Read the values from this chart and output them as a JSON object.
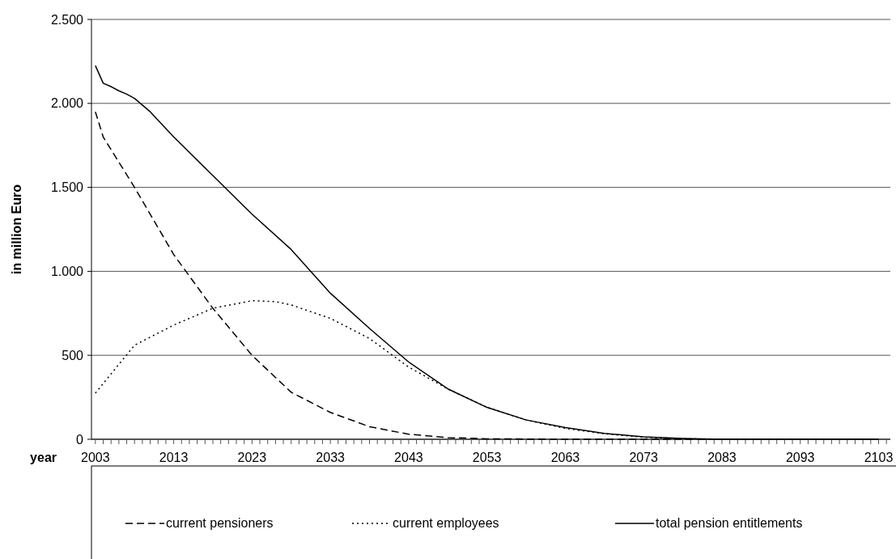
{
  "chart_data": {
    "type": "line",
    "xlabel": "year",
    "ylabel": "in million Euro",
    "xlim": [
      2002.5,
      2104.5
    ],
    "ylim": [
      0,
      2500
    ],
    "yticks": [
      0,
      500,
      {
        "value": 1000,
        "label": "1.000"
      },
      {
        "value": 1500,
        "label": "1.500"
      },
      {
        "value": 2000,
        "label": "2.000"
      },
      {
        "value": 2500,
        "label": "2.500"
      }
    ],
    "xticks": [
      2003,
      {
        "value": 2004,
        "label": null
      },
      {
        "value": 2005,
        "label": null
      },
      {
        "value": 2006,
        "label": null
      },
      {
        "value": 2007,
        "label": null
      },
      {
        "value": 2008,
        "label": null
      },
      {
        "value": 2009,
        "label": null
      },
      {
        "value": 2010,
        "label": null
      },
      {
        "value": 2011,
        "label": null
      },
      {
        "value": 2012,
        "label": null
      },
      2013,
      {
        "value": 2014,
        "label": null
      },
      {
        "value": 2015,
        "label": null
      },
      {
        "value": 2016,
        "label": null
      },
      {
        "value": 2017,
        "label": null
      },
      {
        "value": 2018,
        "label": null
      },
      {
        "value": 2019,
        "label": null
      },
      {
        "value": 2020,
        "label": null
      },
      {
        "value": 2021,
        "label": null
      },
      {
        "value": 2022,
        "label": null
      },
      2023,
      {
        "value": 2024,
        "label": null
      },
      {
        "value": 2025,
        "label": null
      },
      {
        "value": 2026,
        "label": null
      },
      {
        "value": 2027,
        "label": null
      },
      {
        "value": 2028,
        "label": null
      },
      {
        "value": 2029,
        "label": null
      },
      {
        "value": 2030,
        "label": null
      },
      {
        "value": 2031,
        "label": null
      },
      {
        "value": 2032,
        "label": null
      },
      2033,
      {
        "value": 2034,
        "label": null
      },
      {
        "value": 2035,
        "label": null
      },
      {
        "value": 2036,
        "label": null
      },
      {
        "value": 2037,
        "label": null
      },
      {
        "value": 2038,
        "label": null
      },
      {
        "value": 2039,
        "label": null
      },
      {
        "value": 2040,
        "label": null
      },
      {
        "value": 2041,
        "label": null
      },
      {
        "value": 2042,
        "label": null
      },
      2043,
      {
        "value": 2044,
        "label": null
      },
      {
        "value": 2045,
        "label": null
      },
      {
        "value": 2046,
        "label": null
      },
      {
        "value": 2047,
        "label": null
      },
      {
        "value": 2048,
        "label": null
      },
      {
        "value": 2049,
        "label": null
      },
      {
        "value": 2050,
        "label": null
      },
      {
        "value": 2051,
        "label": null
      },
      {
        "value": 2052,
        "label": null
      },
      2053,
      {
        "value": 2054,
        "label": null
      },
      {
        "value": 2055,
        "label": null
      },
      {
        "value": 2056,
        "label": null
      },
      {
        "value": 2057,
        "label": null
      },
      {
        "value": 2058,
        "label": null
      },
      {
        "value": 2059,
        "label": null
      },
      {
        "value": 2060,
        "label": null
      },
      {
        "value": 2061,
        "label": null
      },
      {
        "value": 2062,
        "label": null
      },
      2063,
      {
        "value": 2064,
        "label": null
      },
      {
        "value": 2065,
        "label": null
      },
      {
        "value": 2066,
        "label": null
      },
      {
        "value": 2067,
        "label": null
      },
      {
        "value": 2068,
        "label": null
      },
      {
        "value": 2069,
        "label": null
      },
      {
        "value": 2070,
        "label": null
      },
      {
        "value": 2071,
        "label": null
      },
      {
        "value": 2072,
        "label": null
      },
      2073,
      {
        "value": 2074,
        "label": null
      },
      {
        "value": 2075,
        "label": null
      },
      {
        "value": 2076,
        "label": null
      },
      {
        "value": 2077,
        "label": null
      },
      {
        "value": 2078,
        "label": null
      },
      {
        "value": 2079,
        "label": null
      },
      {
        "value": 2080,
        "label": null
      },
      {
        "value": 2081,
        "label": null
      },
      {
        "value": 2082,
        "label": null
      },
      2083,
      {
        "value": 2084,
        "label": null
      },
      {
        "value": 2085,
        "label": null
      },
      {
        "value": 2086,
        "label": null
      },
      {
        "value": 2087,
        "label": null
      },
      {
        "value": 2088,
        "label": null
      },
      {
        "value": 2089,
        "label": null
      },
      {
        "value": 2090,
        "label": null
      },
      {
        "value": 2091,
        "label": null
      },
      {
        "value": 2092,
        "label": null
      },
      2093,
      {
        "value": 2094,
        "label": null
      },
      {
        "value": 2095,
        "label": null
      },
      {
        "value": 2096,
        "label": null
      },
      {
        "value": 2097,
        "label": null
      },
      {
        "value": 2098,
        "label": null
      },
      {
        "value": 2099,
        "label": null
      },
      {
        "value": 2100,
        "label": null
      },
      {
        "value": 2101,
        "label": null
      },
      {
        "value": 2102,
        "label": null
      },
      2103,
      {
        "value": 2104,
        "label": null
      }
    ],
    "grid": "y",
    "legend": "bottom",
    "series": [
      {
        "name": "current pensioners",
        "color": "#000000",
        "line_style": "dashed",
        "x": [
          2003,
          2004,
          2008,
          2013,
          2018,
          2023,
          2028,
          2033,
          2038,
          2043,
          2048,
          2053,
          2063,
          2103
        ],
        "values": [
          1950,
          1800,
          1500,
          1100,
          780,
          500,
          280,
          160,
          75,
          30,
          10,
          3,
          0,
          0
        ]
      },
      {
        "name": "current employees",
        "color": "#000000",
        "line_style": "dotted",
        "x": [
          2003,
          2008,
          2013,
          2018,
          2023,
          2026,
          2028,
          2033,
          2038,
          2043,
          2048,
          2053,
          2058,
          2063,
          2068,
          2073,
          2078,
          2083,
          2103
        ],
        "values": [
          275,
          560,
          680,
          780,
          825,
          820,
          800,
          720,
          600,
          430,
          300,
          190,
          115,
          65,
          33,
          12,
          3,
          0,
          0
        ]
      },
      {
        "name": "total pension entitlements",
        "color": "#000000",
        "line_style": "solid",
        "x": [
          2003,
          2004,
          2005,
          2006,
          2007,
          2008,
          2010,
          2013,
          2018,
          2023,
          2028,
          2033,
          2038,
          2043,
          2048,
          2053,
          2058,
          2063,
          2068,
          2073,
          2078,
          2083,
          2103
        ],
        "values": [
          2225,
          2120,
          2100,
          2075,
          2055,
          2030,
          1950,
          1800,
          1570,
          1340,
          1130,
          870,
          660,
          460,
          300,
          190,
          115,
          70,
          35,
          15,
          5,
          0,
          0
        ]
      }
    ]
  }
}
